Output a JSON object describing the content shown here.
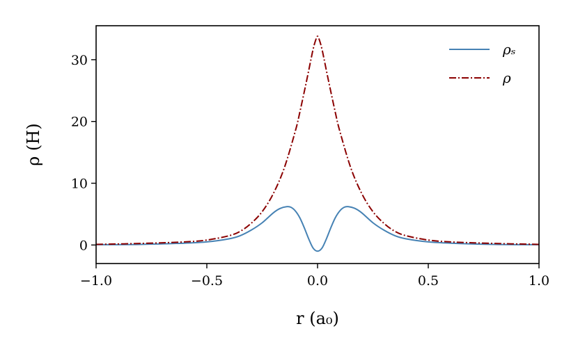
{
  "chart_data": {
    "type": "line",
    "xlabel": "r (a₀)",
    "ylabel": "ρ (H)",
    "xlim": [
      -1.0,
      1.0
    ],
    "ylim": [
      -3,
      35.5
    ],
    "xticks": [
      -1.0,
      -0.5,
      0.0,
      0.5,
      1.0
    ],
    "xtick_labels": [
      "−1.0",
      "−0.5",
      "0.0",
      "0.5",
      "1.0"
    ],
    "yticks": [
      0,
      10,
      20,
      30
    ],
    "ytick_labels": [
      "0",
      "10",
      "20",
      "30"
    ],
    "grid": false,
    "legend_position": "top-right",
    "series": [
      {
        "name": "ρₛ",
        "color": "#4682b4",
        "style": "solid",
        "x": [
          -1.0,
          -0.8,
          -0.6,
          -0.5,
          -0.4,
          -0.35,
          -0.3,
          -0.25,
          -0.2,
          -0.17,
          -0.14,
          -0.12,
          -0.1,
          -0.08,
          -0.06,
          -0.04,
          -0.02,
          0.0,
          0.02,
          0.04,
          0.06,
          0.08,
          0.1,
          0.12,
          0.14,
          0.17,
          0.2,
          0.25,
          0.3,
          0.35,
          0.4,
          0.5,
          0.6,
          0.8,
          1.0
        ],
        "y": [
          0.05,
          0.1,
          0.3,
          0.5,
          1.0,
          1.5,
          2.4,
          3.6,
          5.2,
          5.9,
          6.2,
          6.1,
          5.5,
          4.4,
          2.8,
          1.0,
          -0.5,
          -1.0,
          -0.5,
          1.0,
          2.8,
          4.4,
          5.5,
          6.1,
          6.2,
          5.9,
          5.2,
          3.6,
          2.4,
          1.5,
          1.0,
          0.5,
          0.3,
          0.1,
          0.05
        ]
      },
      {
        "name": "ρ",
        "color": "#8b0000",
        "style": "dashdot",
        "x": [
          -1.0,
          -0.8,
          -0.6,
          -0.5,
          -0.4,
          -0.35,
          -0.3,
          -0.25,
          -0.2,
          -0.15,
          -0.1,
          -0.08,
          -0.05,
          -0.03,
          -0.02,
          -0.01,
          0.0,
          0.01,
          0.02,
          0.03,
          0.05,
          0.08,
          0.1,
          0.15,
          0.2,
          0.25,
          0.3,
          0.35,
          0.4,
          0.5,
          0.6,
          0.8,
          1.0
        ],
        "y": [
          0.1,
          0.25,
          0.5,
          0.8,
          1.5,
          2.2,
          3.5,
          5.4,
          8.3,
          12.5,
          18.5,
          21.5,
          26.5,
          30.0,
          31.7,
          33.0,
          33.8,
          33.0,
          31.7,
          30.0,
          26.5,
          21.5,
          18.5,
          12.5,
          8.3,
          5.4,
          3.5,
          2.2,
          1.5,
          0.8,
          0.5,
          0.25,
          0.1
        ]
      }
    ]
  }
}
